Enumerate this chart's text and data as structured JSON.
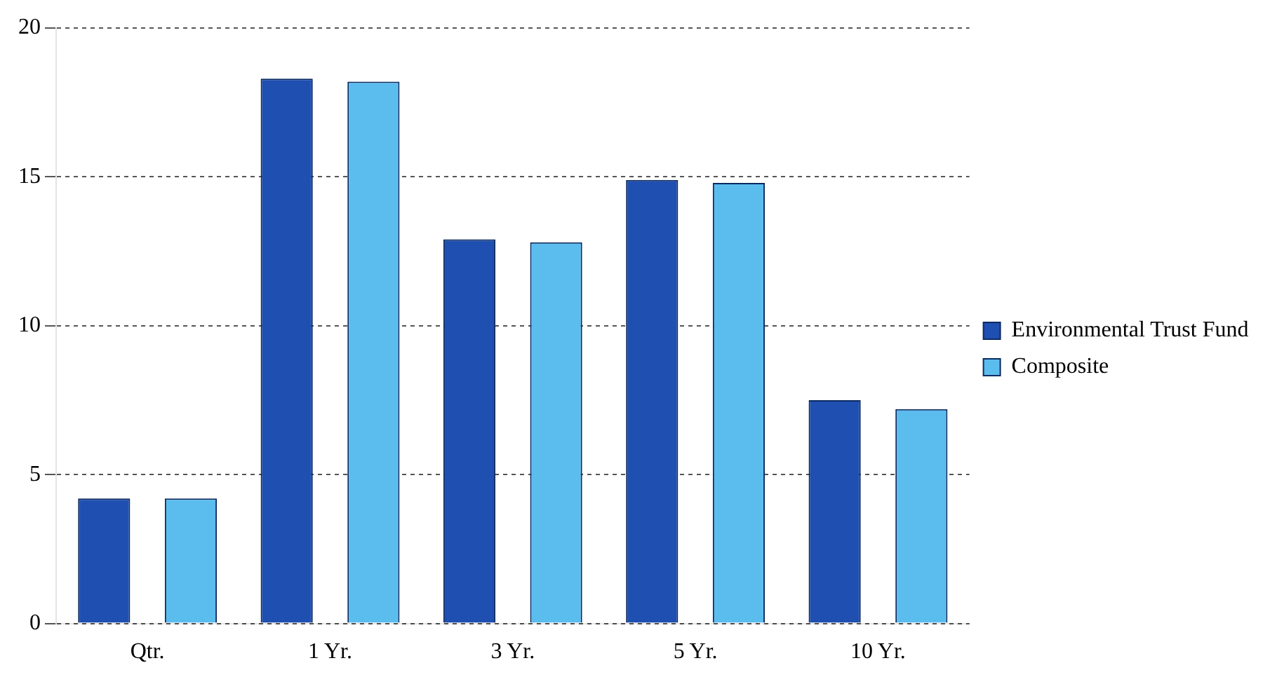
{
  "chart_data": {
    "type": "bar",
    "categories": [
      "Qtr.",
      "1 Yr.",
      "3 Yr.",
      "5 Yr.",
      "10 Yr."
    ],
    "series": [
      {
        "name": "Environmental Trust Fund",
        "color": "#1f4fb0",
        "values": [
          4.2,
          18.3,
          12.9,
          14.9,
          7.5
        ]
      },
      {
        "name": "Composite",
        "color": "#5bbdee",
        "values": [
          4.2,
          18.2,
          12.8,
          14.8,
          7.2
        ]
      }
    ],
    "ylim": [
      0,
      20
    ],
    "yticks": [
      0,
      5,
      10,
      15,
      20
    ],
    "grid": "y",
    "legend": "right"
  }
}
